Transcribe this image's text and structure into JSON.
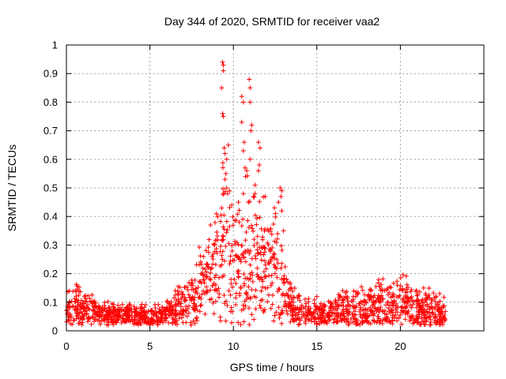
{
  "chart_data": {
    "type": "scatter",
    "title": "Day 344 of 2020, SRMTID for receiver vaa2",
    "xlabel": "GPS time / hours",
    "ylabel": "SRMTID / TECUs",
    "xlim": [
      0,
      25
    ],
    "ylim": [
      0,
      1
    ],
    "grid": true,
    "marker": "plus",
    "color": "#ff0000",
    "x_ticks": [
      0,
      5,
      10,
      15,
      20
    ],
    "x_tick_labels": [
      "0",
      "5",
      "10",
      "15",
      "20"
    ],
    "y_ticks": [
      0,
      0.1,
      0.2,
      0.3,
      0.4,
      0.5,
      0.6,
      0.7,
      0.8,
      0.9,
      1
    ],
    "y_tick_labels": [
      "0",
      "0.1",
      "0.2",
      "0.3",
      "0.4",
      "0.5",
      "0.6",
      "0.7",
      "0.8",
      "0.9",
      "1"
    ],
    "x_range_of_data": [
      0,
      22.7
    ],
    "profile": {
      "x": [
        0,
        0.5,
        1,
        1.5,
        2,
        3,
        4,
        5,
        5.5,
        6,
        6.5,
        7,
        7.5,
        8,
        8.5,
        9,
        9.5,
        10,
        10.5,
        11,
        11.5,
        12,
        12.5,
        13,
        13.5,
        14,
        15,
        16,
        17,
        18,
        19,
        20,
        21,
        22,
        22.7
      ],
      "median": [
        0.07,
        0.09,
        0.08,
        0.08,
        0.06,
        0.05,
        0.05,
        0.05,
        0.05,
        0.06,
        0.07,
        0.09,
        0.1,
        0.14,
        0.19,
        0.25,
        0.3,
        0.25,
        0.22,
        0.25,
        0.24,
        0.24,
        0.22,
        0.14,
        0.09,
        0.07,
        0.06,
        0.06,
        0.08,
        0.08,
        0.09,
        0.1,
        0.08,
        0.07,
        0.05
      ],
      "spread": [
        0.04,
        0.06,
        0.05,
        0.05,
        0.03,
        0.03,
        0.03,
        0.03,
        0.03,
        0.03,
        0.04,
        0.06,
        0.07,
        0.1,
        0.12,
        0.16,
        0.22,
        0.2,
        0.18,
        0.2,
        0.15,
        0.13,
        0.14,
        0.08,
        0.05,
        0.04,
        0.04,
        0.04,
        0.05,
        0.05,
        0.07,
        0.07,
        0.06,
        0.05,
        0.04
      ]
    },
    "outliers": [
      {
        "x": 9.35,
        "y": 0.94
      },
      {
        "x": 9.4,
        "y": 0.93
      },
      {
        "x": 9.4,
        "y": 0.91
      },
      {
        "x": 9.3,
        "y": 0.85
      },
      {
        "x": 9.35,
        "y": 0.76
      },
      {
        "x": 9.4,
        "y": 0.75
      },
      {
        "x": 10.95,
        "y": 0.88
      },
      {
        "x": 11.0,
        "y": 0.85
      },
      {
        "x": 10.5,
        "y": 0.82
      },
      {
        "x": 10.6,
        "y": 0.8
      },
      {
        "x": 11.0,
        "y": 0.8
      },
      {
        "x": 10.5,
        "y": 0.73
      },
      {
        "x": 11.1,
        "y": 0.72
      },
      {
        "x": 11.05,
        "y": 0.7
      },
      {
        "x": 10.65,
        "y": 0.66
      },
      {
        "x": 11.5,
        "y": 0.66
      },
      {
        "x": 11.6,
        "y": 0.64
      },
      {
        "x": 10.6,
        "y": 0.63
      },
      {
        "x": 9.45,
        "y": 0.64
      },
      {
        "x": 9.5,
        "y": 0.62
      },
      {
        "x": 9.6,
        "y": 0.6
      },
      {
        "x": 9.7,
        "y": 0.65
      },
      {
        "x": 9.55,
        "y": 0.55
      },
      {
        "x": 9.6,
        "y": 0.5
      },
      {
        "x": 11.55,
        "y": 0.58
      },
      {
        "x": 11.5,
        "y": 0.56
      },
      {
        "x": 10.7,
        "y": 0.57
      },
      {
        "x": 10.8,
        "y": 0.56
      },
      {
        "x": 11.0,
        "y": 0.6
      },
      {
        "x": 9.5,
        "y": 0.53
      },
      {
        "x": 9.65,
        "y": 0.48
      },
      {
        "x": 10.6,
        "y": 0.48
      },
      {
        "x": 11.3,
        "y": 0.48
      },
      {
        "x": 12.8,
        "y": 0.5
      },
      {
        "x": 12.9,
        "y": 0.49
      },
      {
        "x": 12.85,
        "y": 0.47
      },
      {
        "x": 12.7,
        "y": 0.45
      },
      {
        "x": 12.9,
        "y": 0.42
      },
      {
        "x": 13.0,
        "y": 0.35
      },
      {
        "x": 9.3,
        "y": 0.43
      },
      {
        "x": 9.9,
        "y": 0.44
      },
      {
        "x": 10.3,
        "y": 0.45
      },
      {
        "x": 10.9,
        "y": 0.45
      },
      {
        "x": 11.2,
        "y": 0.47
      },
      {
        "x": 11.9,
        "y": 0.47
      }
    ]
  }
}
